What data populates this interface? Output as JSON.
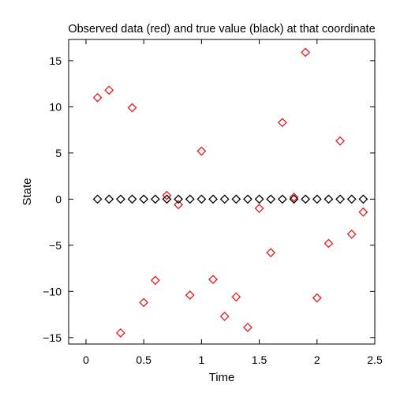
{
  "chart_data": {
    "type": "scatter",
    "title": "Observed data (red) and true value (black) at that coordinate",
    "xlabel": "Time",
    "ylabel": "State",
    "xlim": [
      -0.15,
      2.5
    ],
    "ylim": [
      -15.7,
      17.3
    ],
    "xticks": [
      0,
      0.5,
      1,
      1.5,
      2,
      2.5
    ],
    "xtick_labels": [
      "0",
      "0.5",
      "1",
      "1.5",
      "2",
      "2.5"
    ],
    "yticks": [
      -15,
      -10,
      -5,
      0,
      5,
      10,
      15
    ],
    "ytick_labels": [
      "−15",
      "−10",
      "−5",
      "0",
      "5",
      "10",
      "15"
    ],
    "grid": false,
    "marker": "diamond",
    "series": [
      {
        "color": "#e41a1c",
        "x": [
          0.1,
          0.2,
          0.3,
          0.4,
          0.5,
          0.6,
          0.7,
          0.8,
          0.9,
          1.0,
          1.1,
          1.2,
          1.3,
          1.4,
          1.5,
          1.6,
          1.7,
          1.8,
          1.9,
          2.0,
          2.1,
          2.2,
          2.3,
          2.4
        ],
        "y": [
          11.0,
          11.8,
          -14.5,
          9.9,
          -11.2,
          -8.8,
          0.4,
          -0.6,
          -10.4,
          5.2,
          -8.7,
          -12.7,
          -10.6,
          -13.9,
          -1.0,
          -5.8,
          8.3,
          0.2,
          15.9,
          -10.7,
          -4.8,
          6.3,
          -3.8,
          -1.4
        ]
      },
      {
        "color": "#000000",
        "x": [
          0.1,
          0.2,
          0.3,
          0.4,
          0.5,
          0.6,
          0.7,
          0.8,
          0.9,
          1.0,
          1.1,
          1.2,
          1.3,
          1.4,
          1.5,
          1.6,
          1.7,
          1.8,
          1.9,
          2.0,
          2.1,
          2.2,
          2.3,
          2.4
        ],
        "y": [
          0,
          0,
          0,
          0,
          0,
          0,
          0,
          0,
          0,
          0,
          0,
          0,
          0,
          0,
          0,
          0,
          0,
          0,
          0,
          0,
          0,
          0,
          0,
          0
        ]
      }
    ]
  }
}
